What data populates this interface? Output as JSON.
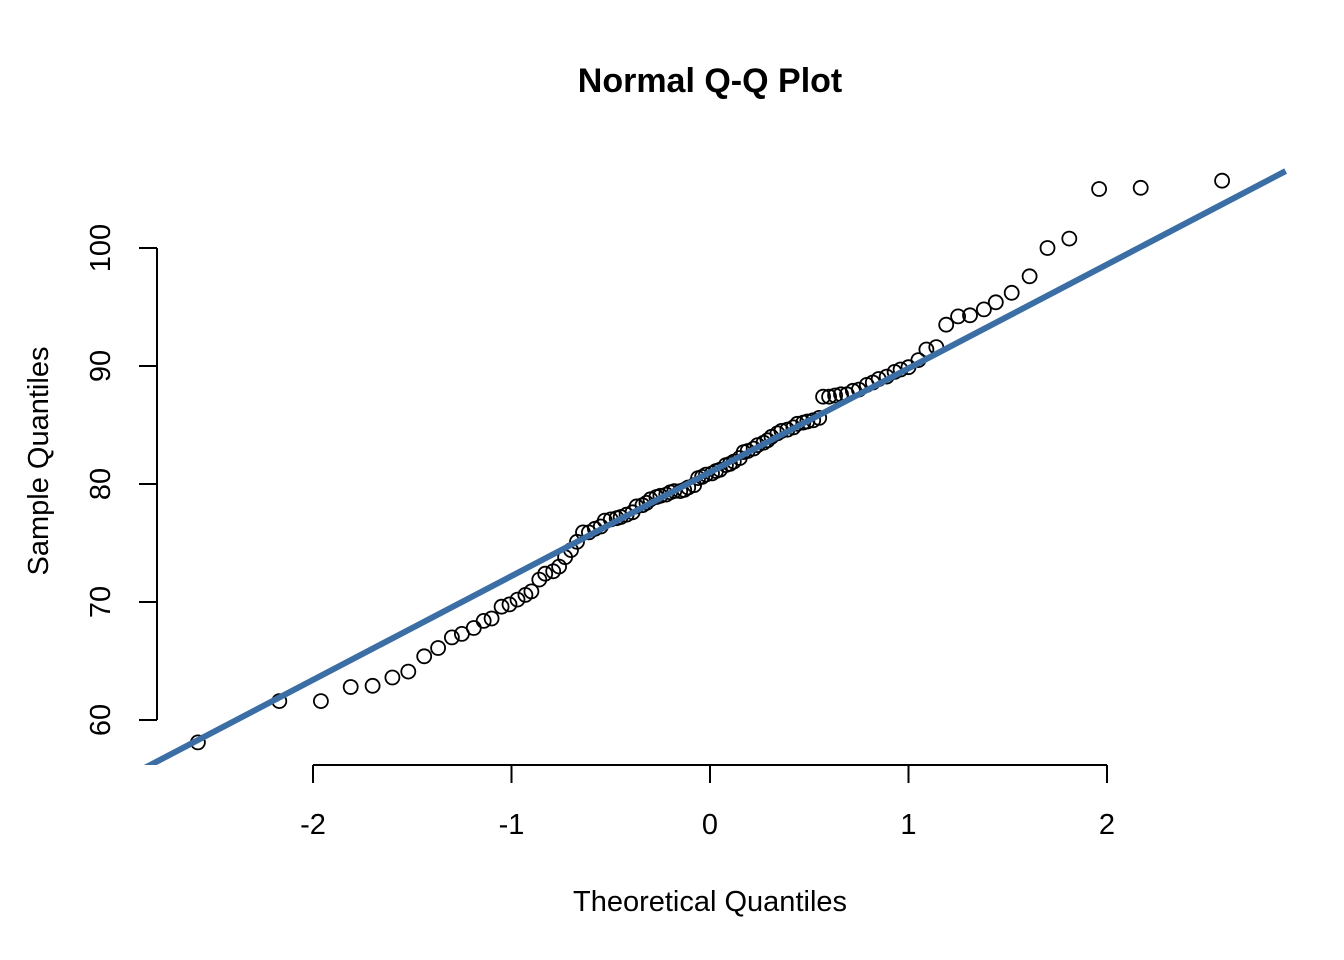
{
  "chart_data": {
    "type": "scatter",
    "title": "Normal Q-Q Plot",
    "xlabel": "Theoretical Quantiles",
    "ylabel": "Sample Quantiles",
    "xlim": [
      -2.8,
      2.8
    ],
    "ylim": [
      55.5,
      107.5
    ],
    "x_ticks": [
      -2,
      -1,
      0,
      1,
      2
    ],
    "y_ticks": [
      60,
      70,
      80,
      90,
      100
    ],
    "grid": false,
    "reference_line": {
      "color": "#3a6ea5",
      "intercept": 81.0,
      "slope": 8.8
    },
    "points": [
      [
        -2.58,
        58.1
      ],
      [
        -2.17,
        61.6
      ],
      [
        -1.96,
        61.6
      ],
      [
        -1.81,
        62.8
      ],
      [
        -1.7,
        62.9
      ],
      [
        -1.6,
        63.6
      ],
      [
        -1.52,
        64.1
      ],
      [
        -1.44,
        65.4
      ],
      [
        -1.37,
        66.1
      ],
      [
        -1.3,
        67.0
      ],
      [
        -1.25,
        67.3
      ],
      [
        -1.19,
        67.8
      ],
      [
        -1.14,
        68.4
      ],
      [
        -1.1,
        68.6
      ],
      [
        -1.05,
        69.6
      ],
      [
        -1.01,
        69.8
      ],
      [
        -0.97,
        70.2
      ],
      [
        -0.93,
        70.6
      ],
      [
        -0.9,
        70.9
      ],
      [
        -0.86,
        71.9
      ],
      [
        -0.83,
        72.4
      ],
      [
        -0.79,
        72.6
      ],
      [
        -0.76,
        73.0
      ],
      [
        -0.73,
        73.8
      ],
      [
        -0.7,
        74.4
      ],
      [
        -0.67,
        75.1
      ],
      [
        -0.64,
        75.9
      ],
      [
        -0.61,
        75.9
      ],
      [
        -0.58,
        76.2
      ],
      [
        -0.55,
        76.4
      ],
      [
        -0.53,
        76.9
      ],
      [
        -0.5,
        77.0
      ],
      [
        -0.47,
        77.1
      ],
      [
        -0.45,
        77.2
      ],
      [
        -0.42,
        77.4
      ],
      [
        -0.39,
        77.6
      ],
      [
        -0.37,
        78.1
      ],
      [
        -0.34,
        78.2
      ],
      [
        -0.32,
        78.4
      ],
      [
        -0.3,
        78.7
      ],
      [
        -0.27,
        78.9
      ],
      [
        -0.25,
        79.0
      ],
      [
        -0.22,
        79.1
      ],
      [
        -0.2,
        79.3
      ],
      [
        -0.18,
        79.4
      ],
      [
        -0.15,
        79.4
      ],
      [
        -0.13,
        79.5
      ],
      [
        -0.11,
        79.7
      ],
      [
        -0.08,
        79.9
      ],
      [
        -0.06,
        80.5
      ],
      [
        -0.04,
        80.6
      ],
      [
        -0.02,
        80.8
      ],
      [
        0.01,
        80.9
      ],
      [
        0.03,
        81.1
      ],
      [
        0.05,
        81.2
      ],
      [
        0.08,
        81.6
      ],
      [
        0.1,
        81.7
      ],
      [
        0.12,
        81.9
      ],
      [
        0.15,
        82.2
      ],
      [
        0.17,
        82.7
      ],
      [
        0.19,
        82.8
      ],
      [
        0.22,
        83.0
      ],
      [
        0.24,
        83.3
      ],
      [
        0.27,
        83.5
      ],
      [
        0.29,
        83.7
      ],
      [
        0.31,
        84.0
      ],
      [
        0.34,
        84.3
      ],
      [
        0.36,
        84.5
      ],
      [
        0.39,
        84.6
      ],
      [
        0.42,
        84.8
      ],
      [
        0.44,
        85.1
      ],
      [
        0.47,
        85.2
      ],
      [
        0.49,
        85.3
      ],
      [
        0.52,
        85.4
      ],
      [
        0.55,
        85.6
      ],
      [
        0.57,
        87.4
      ],
      [
        0.6,
        87.4
      ],
      [
        0.63,
        87.5
      ],
      [
        0.66,
        87.6
      ],
      [
        0.69,
        87.6
      ],
      [
        0.72,
        87.9
      ],
      [
        0.75,
        88.0
      ],
      [
        0.79,
        88.4
      ],
      [
        0.82,
        88.6
      ],
      [
        0.85,
        88.9
      ],
      [
        0.89,
        89.1
      ],
      [
        0.93,
        89.5
      ],
      [
        0.96,
        89.7
      ],
      [
        1.0,
        89.9
      ],
      [
        1.05,
        90.5
      ],
      [
        1.09,
        91.4
      ],
      [
        1.14,
        91.6
      ],
      [
        1.19,
        93.5
      ],
      [
        1.25,
        94.2
      ],
      [
        1.31,
        94.3
      ],
      [
        1.38,
        94.8
      ],
      [
        1.44,
        95.4
      ],
      [
        1.52,
        96.2
      ],
      [
        1.61,
        97.6
      ],
      [
        1.7,
        100.0
      ],
      [
        1.81,
        100.8
      ],
      [
        1.96,
        105.0
      ],
      [
        2.17,
        105.1
      ],
      [
        2.58,
        105.7
      ]
    ]
  }
}
